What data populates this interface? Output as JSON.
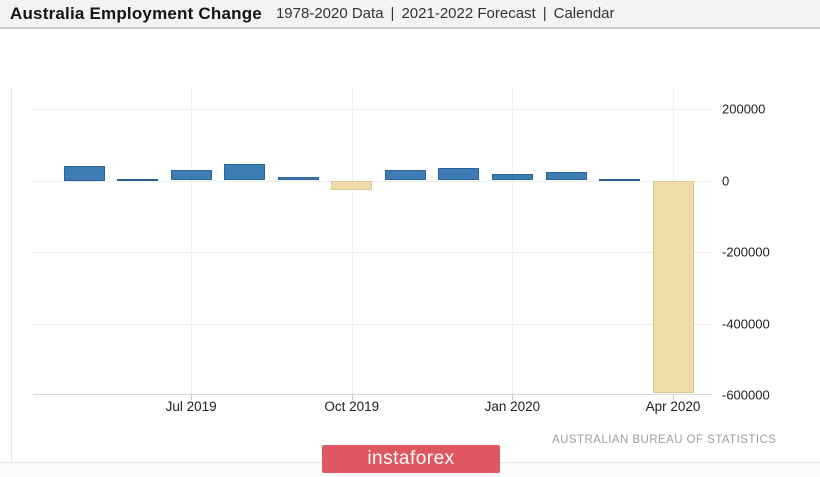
{
  "header": {
    "title": "Australia Employment Change",
    "separator": "|",
    "subtitle_parts": [
      "1978-2020 Data",
      "2021-2022 Forecast",
      "Calendar"
    ],
    "subtitle": "1978-2020 Data | 2021-2022 Forecast | Calendar"
  },
  "chart_data": {
    "type": "bar",
    "title": "Australia Employment Change",
    "categories": [
      "May 2019",
      "Jun 2019",
      "Jul 2019",
      "Aug 2019",
      "Sep 2019",
      "Oct 2019",
      "Nov 2019",
      "Dec 2019",
      "Jan 2020",
      "Feb 2020",
      "Mar 2020",
      "Apr 2020"
    ],
    "values": [
      42000,
      3000,
      30000,
      46000,
      10000,
      -26000,
      30000,
      36000,
      19000,
      25000,
      4000,
      -594300
    ],
    "xticks": [
      {
        "index": 2,
        "label": "Jul 2019"
      },
      {
        "index": 5,
        "label": "Oct 2019"
      },
      {
        "index": 8,
        "label": "Jan 2020"
      },
      {
        "index": 11,
        "label": "Apr 2020"
      }
    ],
    "yticks": [
      200000,
      0,
      -200000,
      -400000,
      -600000
    ],
    "ytick_labels": [
      "200000",
      "0",
      "-200000",
      "-400000",
      "-600000"
    ],
    "ylim": [
      -600000,
      261000
    ],
    "grid": true,
    "y_axis_side": "right",
    "legend": "none",
    "colors": {
      "positive": "#3e7cb5",
      "negative": "#f0dbab"
    },
    "source": "AUSTRALIAN BUREAU OF STATISTICS"
  },
  "footer": {
    "source_label": "AUSTRALIAN BUREAU OF STATISTICS",
    "logo_text": "instaforex",
    "logo_color": "#e0585f"
  }
}
